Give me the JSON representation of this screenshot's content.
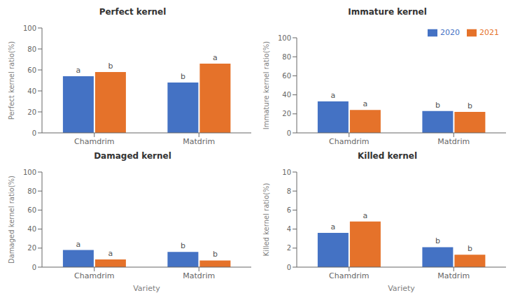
{
  "chart_data": [
    {
      "type": "bar",
      "title": "Perfect kernel",
      "ylabel": "Perfect kernel ratio(%)",
      "categories": [
        "Chamdrim",
        "Matdrim"
      ],
      "series": [
        {
          "name": "2020",
          "color": "#4472C4",
          "values": [
            54,
            48
          ],
          "letters": [
            "a",
            "b"
          ]
        },
        {
          "name": "2021",
          "color": "#E5722A",
          "values": [
            58,
            66
          ],
          "letters": [
            "b",
            "a"
          ]
        }
      ],
      "ylim": [
        0,
        100
      ],
      "yticks": [
        0,
        20,
        40,
        60,
        80,
        100
      ],
      "grid": false
    },
    {
      "type": "bar",
      "title": "Immature kernel",
      "ylabel": "Immature kernel ratio(%)",
      "categories": [
        "Chamdrim",
        "Matdrim"
      ],
      "series": [
        {
          "name": "2020",
          "color": "#4472C4",
          "values": [
            33,
            23
          ],
          "letters": [
            "a",
            "b"
          ]
        },
        {
          "name": "2021",
          "color": "#E5722A",
          "values": [
            24,
            22
          ],
          "letters": [
            "a",
            "b"
          ]
        }
      ],
      "ylim": [
        0,
        100
      ],
      "yticks": [
        0,
        20,
        40,
        60,
        80,
        100
      ],
      "grid": false,
      "legend": "upper right"
    },
    {
      "type": "bar",
      "title": "Damaged kernel",
      "xlabel": "Variety",
      "ylabel": "Damaged kernel ratio(%)",
      "categories": [
        "Chamdrim",
        "Matdrim"
      ],
      "series": [
        {
          "name": "2020",
          "color": "#4472C4",
          "values": [
            18,
            16
          ],
          "letters": [
            "a",
            "b"
          ]
        },
        {
          "name": "2021",
          "color": "#E5722A",
          "values": [
            8,
            7
          ],
          "letters": [
            "a",
            "b"
          ]
        }
      ],
      "ylim": [
        0,
        100
      ],
      "yticks": [
        0,
        20,
        40,
        60,
        80,
        100
      ],
      "grid": false
    },
    {
      "type": "bar",
      "title": "Killed kernel",
      "xlabel": "Variety",
      "ylabel": "Killed kernel ratio(%)",
      "categories": [
        "Chamdrim",
        "Matdrim"
      ],
      "series": [
        {
          "name": "2020",
          "color": "#4472C4",
          "values": [
            3.6,
            2.1
          ],
          "letters": [
            "a",
            "b"
          ]
        },
        {
          "name": "2021",
          "color": "#E5722A",
          "values": [
            4.8,
            1.3
          ],
          "letters": [
            "a",
            "b"
          ]
        }
      ],
      "ylim": [
        0,
        10
      ],
      "yticks": [
        0,
        2,
        4,
        6,
        8,
        10
      ],
      "grid": false
    }
  ]
}
